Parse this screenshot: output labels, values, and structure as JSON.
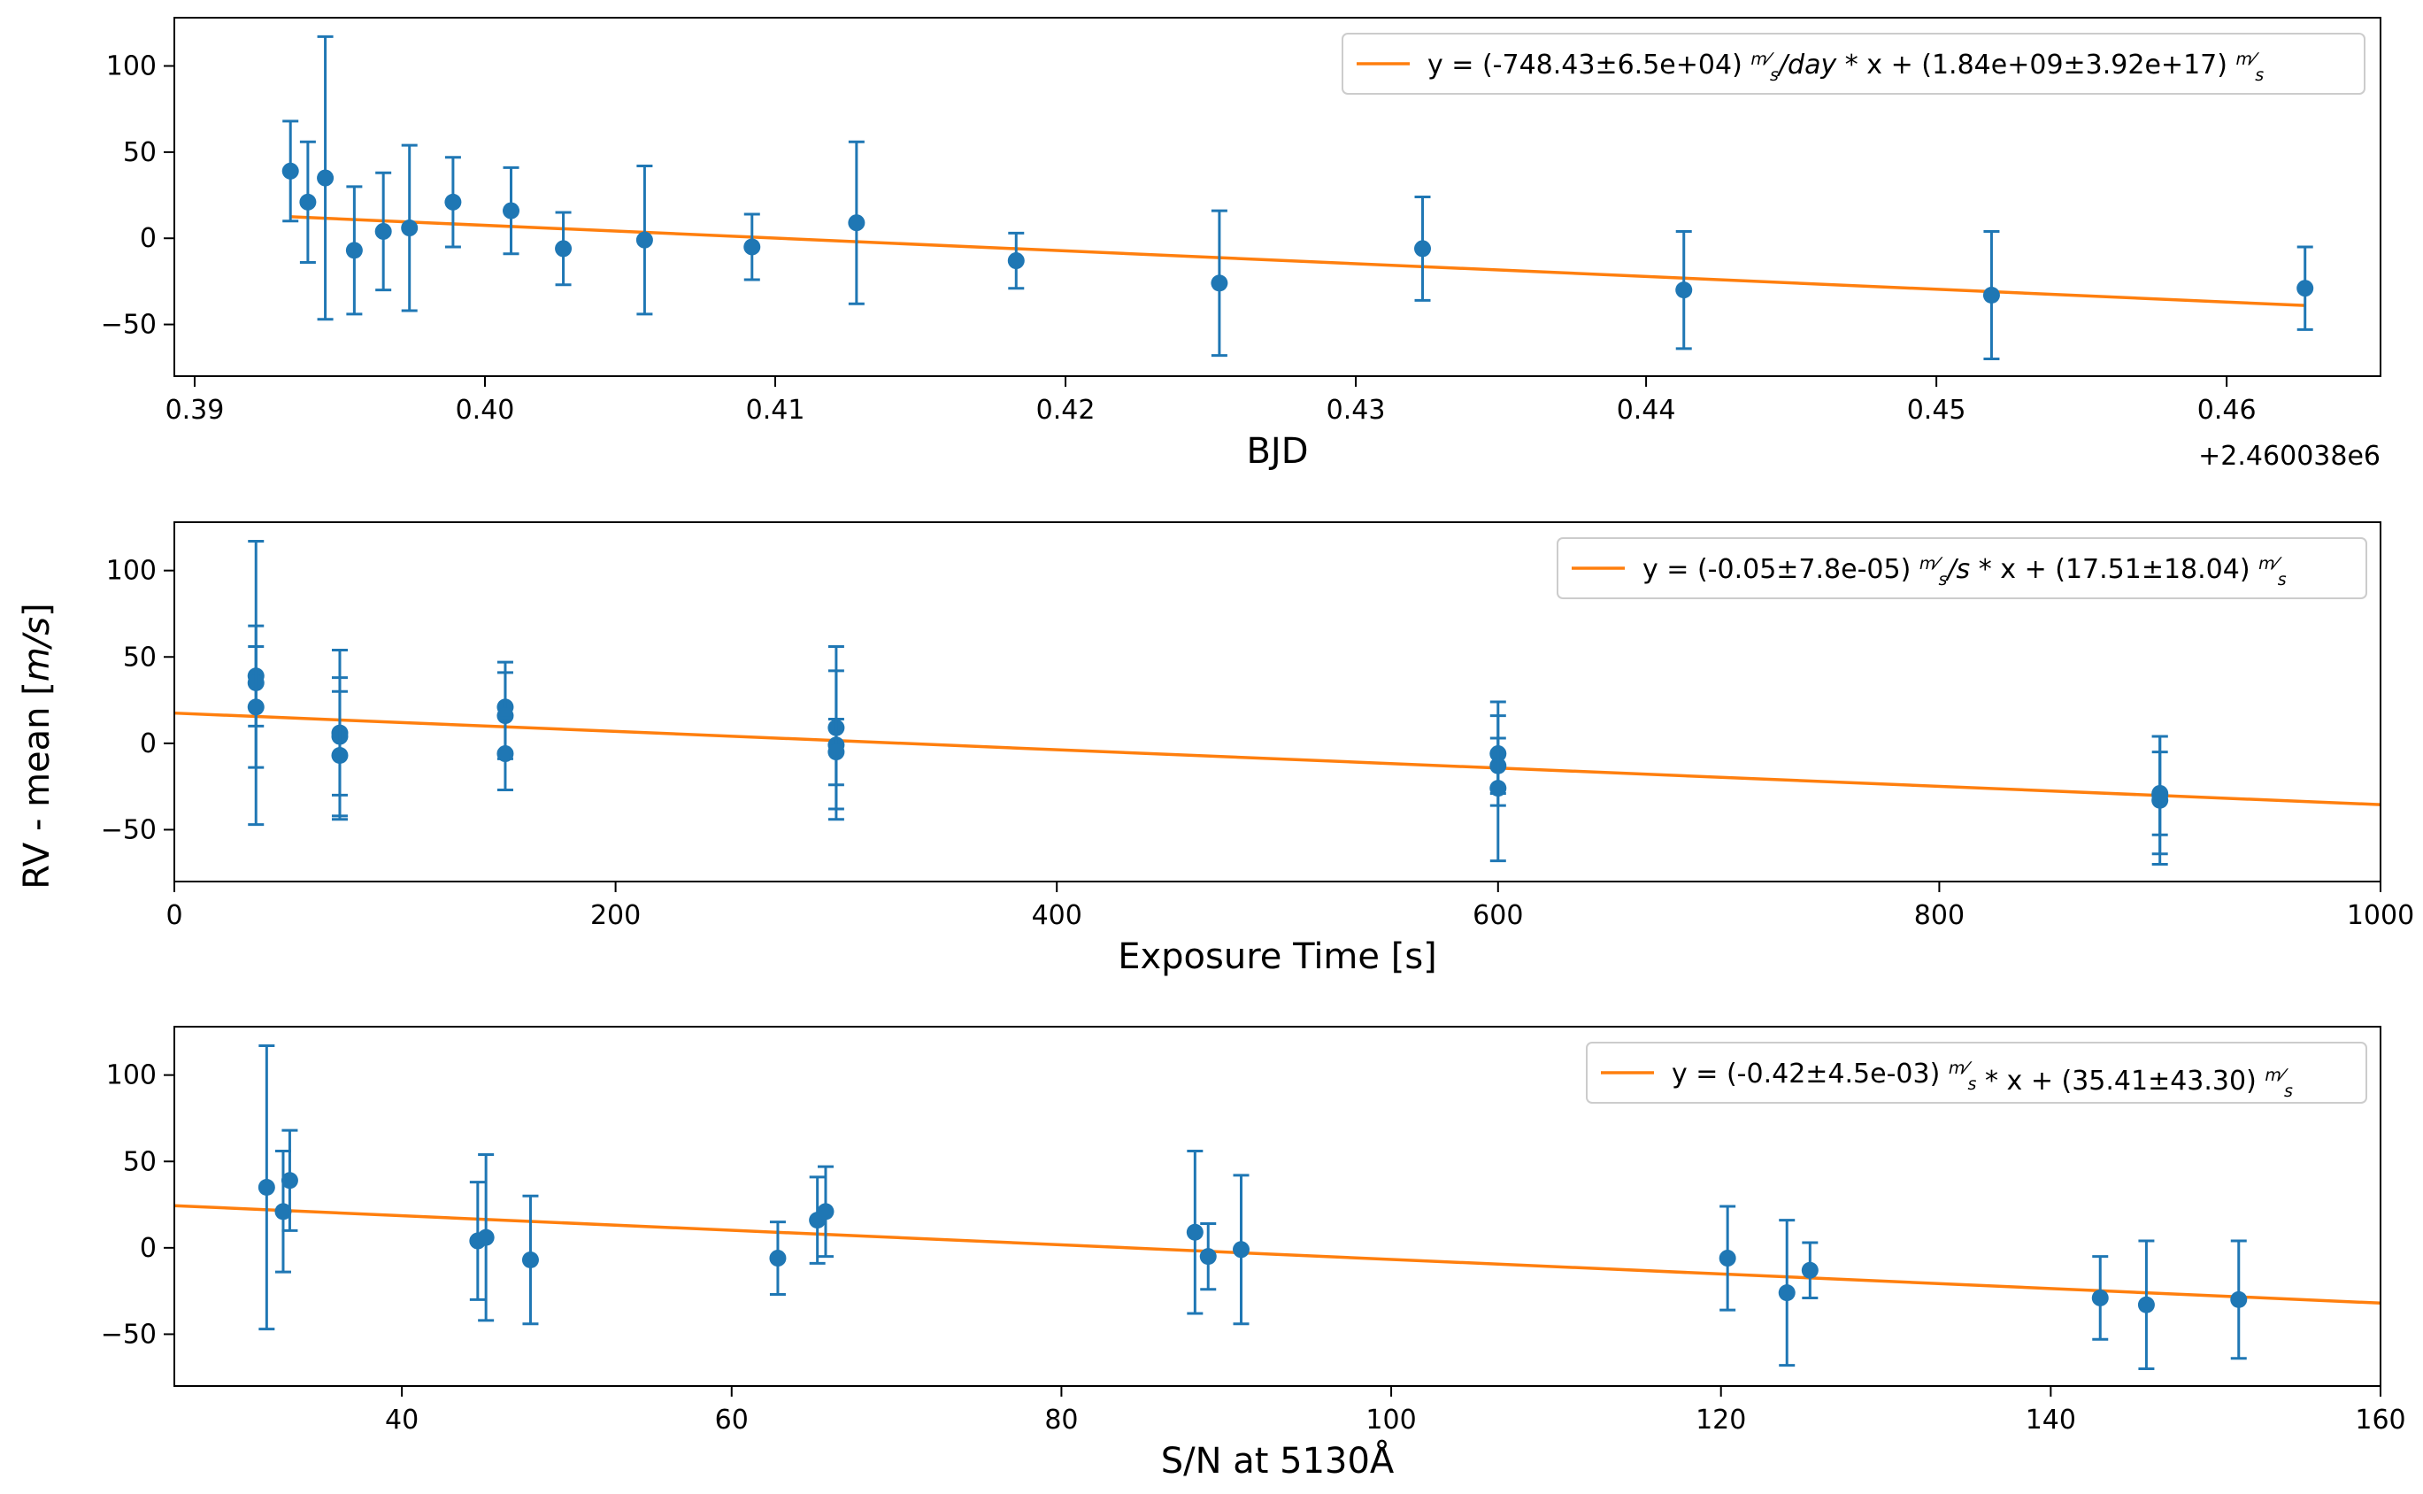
{
  "figure": {
    "shared_ylabel": "RV - mean [m/s]",
    "shared_ylabel_prefix": "RV - mean [",
    "shared_ylabel_unit": "m/s",
    "shared_ylabel_suffix": "]",
    "colors": {
      "data": "#1f77b4",
      "fit": "#ff7f0e"
    }
  },
  "chart_data": [
    {
      "type": "scatter",
      "xlabel": "BJD",
      "x_offset_label": "+2.460038e6",
      "xlim": [
        0.3893,
        0.4653
      ],
      "ylim": [
        -80,
        128
      ],
      "x_ticks": [
        0.39,
        0.4,
        0.41,
        0.42,
        0.43,
        0.44,
        0.45,
        0.46
      ],
      "x_tick_labels": [
        "0.39",
        "0.40",
        "0.41",
        "0.42",
        "0.43",
        "0.44",
        "0.45",
        "0.46"
      ],
      "y_ticks": [
        100,
        50,
        0,
        -50
      ],
      "y_tick_labels": [
        "100",
        "50",
        "0",
        "−50"
      ],
      "legend_position": "top-right",
      "legend": {
        "before": "y = (-748.43±6.5e+04) ",
        "slope_unit": "/day",
        "middle": " * x + (1.84e+09±3.92e+17) ",
        "frac_num": "m",
        "frac_den": "s"
      },
      "fit_line": {
        "x": [
          0.3933,
          0.4627
        ],
        "y": [
          12.5,
          -39
        ]
      },
      "series": [
        {
          "x": [
            0.3933,
            0.3939,
            0.3945,
            0.3955,
            0.3965,
            0.3974,
            0.3989,
            0.4009,
            0.4027,
            0.4055,
            0.4092,
            0.4128,
            0.4183,
            0.4253,
            0.4323,
            0.4413,
            0.4519,
            0.4627
          ],
          "y": [
            39,
            21,
            35,
            -7,
            4,
            6,
            21,
            16,
            -6,
            -1,
            -5,
            9,
            -13,
            -26,
            -6,
            -30,
            -33,
            -29
          ],
          "err": [
            29,
            35,
            82,
            37,
            34,
            48,
            26,
            25,
            21,
            43,
            19,
            47,
            16,
            42,
            30,
            34,
            37,
            24
          ]
        }
      ]
    },
    {
      "type": "scatter",
      "xlabel": "Exposure Time [s]",
      "xlim": [
        0,
        1000
      ],
      "ylim": [
        -80,
        128
      ],
      "x_ticks": [
        0,
        200,
        400,
        600,
        800,
        1000
      ],
      "x_tick_labels": [
        "0",
        "200",
        "400",
        "600",
        "800",
        "1000"
      ],
      "y_ticks": [
        100,
        50,
        0,
        -50
      ],
      "y_tick_labels": [
        "100",
        "50",
        "0",
        "−50"
      ],
      "legend_position": "top-right",
      "legend": {
        "before": "y = (-0.05±7.8e-05) ",
        "slope_unit": "/s",
        "middle": " * x + (17.51±18.04) ",
        "frac_num": "m",
        "frac_den": "s"
      },
      "fit_line": {
        "x": [
          0,
          1000
        ],
        "y": [
          17.5,
          -35.5
        ]
      },
      "series": [
        {
          "x": [
            37,
            37,
            37,
            75,
            75,
            75,
            150,
            150,
            150,
            300,
            300,
            300,
            600,
            600,
            600,
            900,
            900,
            900
          ],
          "y": [
            39,
            35,
            21,
            6,
            4,
            -7,
            21,
            16,
            -6,
            9,
            -1,
            -5,
            -6,
            -13,
            -26,
            -30,
            -33,
            -29
          ],
          "err": [
            29,
            82,
            35,
            48,
            34,
            37,
            26,
            25,
            21,
            47,
            43,
            19,
            30,
            16,
            42,
            34,
            37,
            24
          ]
        }
      ]
    },
    {
      "type": "scatter",
      "xlabel": "S/N at 5130Å",
      "xlim": [
        26.2,
        160
      ],
      "ylim": [
        -80,
        128
      ],
      "x_ticks": [
        40,
        60,
        80,
        100,
        120,
        140,
        160
      ],
      "x_tick_labels": [
        "40",
        "60",
        "80",
        "100",
        "120",
        "140",
        "160"
      ],
      "y_ticks": [
        100,
        50,
        0,
        -50
      ],
      "y_tick_labels": [
        "100",
        "50",
        "0",
        "−50"
      ],
      "legend_position": "top-right",
      "legend": {
        "before": "y = (-0.42±4.5e-03) ",
        "slope_unit": "",
        "middle": " * x + (35.41±43.30) ",
        "frac_num": "m",
        "frac_den": "s"
      },
      "fit_line": {
        "x": [
          26.2,
          160
        ],
        "y": [
          24.4,
          -32
        ]
      },
      "series": [
        {
          "x": [
            31.8,
            32.8,
            33.2,
            44.6,
            45.1,
            47.8,
            62.8,
            65.2,
            65.7,
            88.1,
            88.9,
            90.9,
            120.4,
            124.0,
            125.4,
            143.0,
            145.8,
            151.4
          ],
          "y": [
            35,
            21,
            39,
            4,
            6,
            -7,
            -6,
            16,
            21,
            9,
            -5,
            -1,
            -6,
            -26,
            -13,
            -29,
            -33,
            -30
          ],
          "err": [
            82,
            35,
            29,
            34,
            48,
            37,
            21,
            25,
            26,
            47,
            19,
            43,
            30,
            42,
            16,
            24,
            37,
            34
          ]
        }
      ]
    }
  ]
}
